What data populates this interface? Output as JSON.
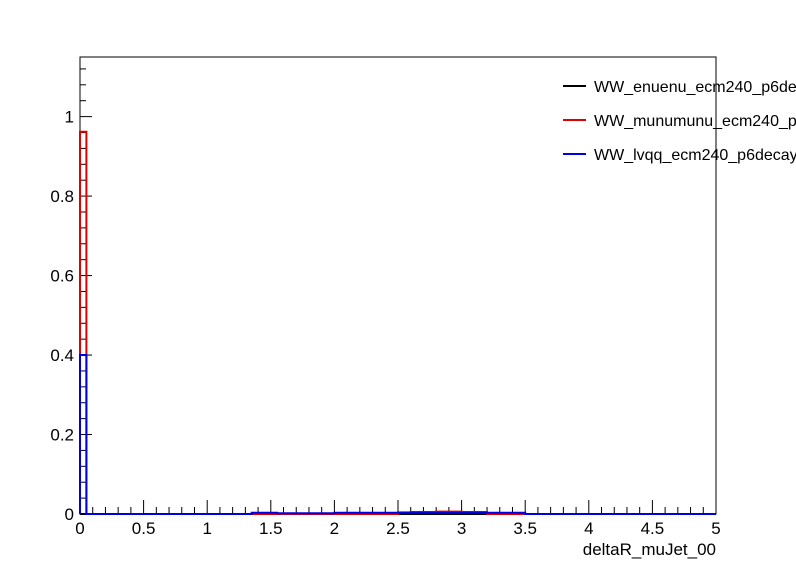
{
  "chart_data": {
    "type": "line",
    "title": "",
    "xlabel": "deltaR_muJet_00",
    "ylabel": "",
    "xlim": [
      0,
      5
    ],
    "ylim": [
      0,
      1.15
    ],
    "x_ticks": [
      "0",
      "0.5",
      "1",
      "1.5",
      "2",
      "2.5",
      "3",
      "3.5",
      "4",
      "4.5",
      "5"
    ],
    "y_ticks": [
      "0",
      "0.2",
      "0.4",
      "0.6",
      "0.8",
      "1"
    ],
    "grid": false,
    "legend_position": "top-right",
    "histogram": true,
    "bin_width": 0.05,
    "series": [
      {
        "name": "WW_enuenu_ecm240_p6de",
        "color": "#000000",
        "bins": [
          [
            0.0,
            0.0
          ]
        ]
      },
      {
        "name": "WW_munumunu_ecm240_p",
        "color": "#e00000",
        "bins": [
          [
            0.0,
            0.962
          ],
          [
            0.05,
            0.0
          ],
          [
            2.5,
            0.004
          ],
          [
            2.6,
            0.005
          ],
          [
            2.8,
            0.006
          ],
          [
            3.0,
            0.005
          ],
          [
            3.2,
            0.0
          ]
        ]
      },
      {
        "name": "WW_lvqq_ecm240_p6decay",
        "color": "#0000e0",
        "bins": [
          [
            0.0,
            0.4
          ],
          [
            0.05,
            0.0
          ],
          [
            1.35,
            0.003
          ],
          [
            1.55,
            0.002
          ],
          [
            2.0,
            0.003
          ],
          [
            2.5,
            0.003
          ],
          [
            3.0,
            0.003
          ],
          [
            3.5,
            0.0
          ]
        ]
      }
    ]
  }
}
